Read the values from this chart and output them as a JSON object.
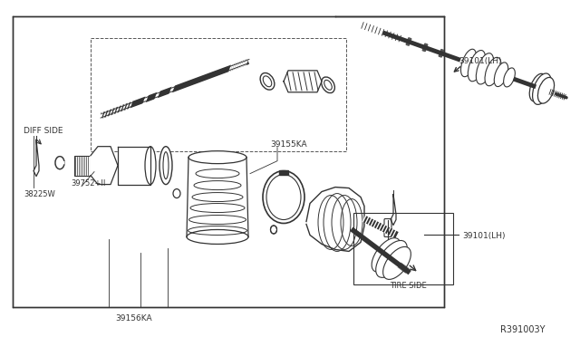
{
  "bg_color": "#ffffff",
  "line_color": "#333333",
  "text_color": "#333333",
  "diagram_id": "R391003Y",
  "labels": {
    "diff_side": "DIFF SIDE",
    "tire_side": "TIRE SIDE",
    "part_39155ka": "39155KA",
    "part_39156ka": "39156KA",
    "part_39752": "39752+II",
    "part_38225w": "38225W",
    "part_39101_lh_top": "39101(LH)",
    "part_39101_lh_bot": "39101(LH)"
  }
}
